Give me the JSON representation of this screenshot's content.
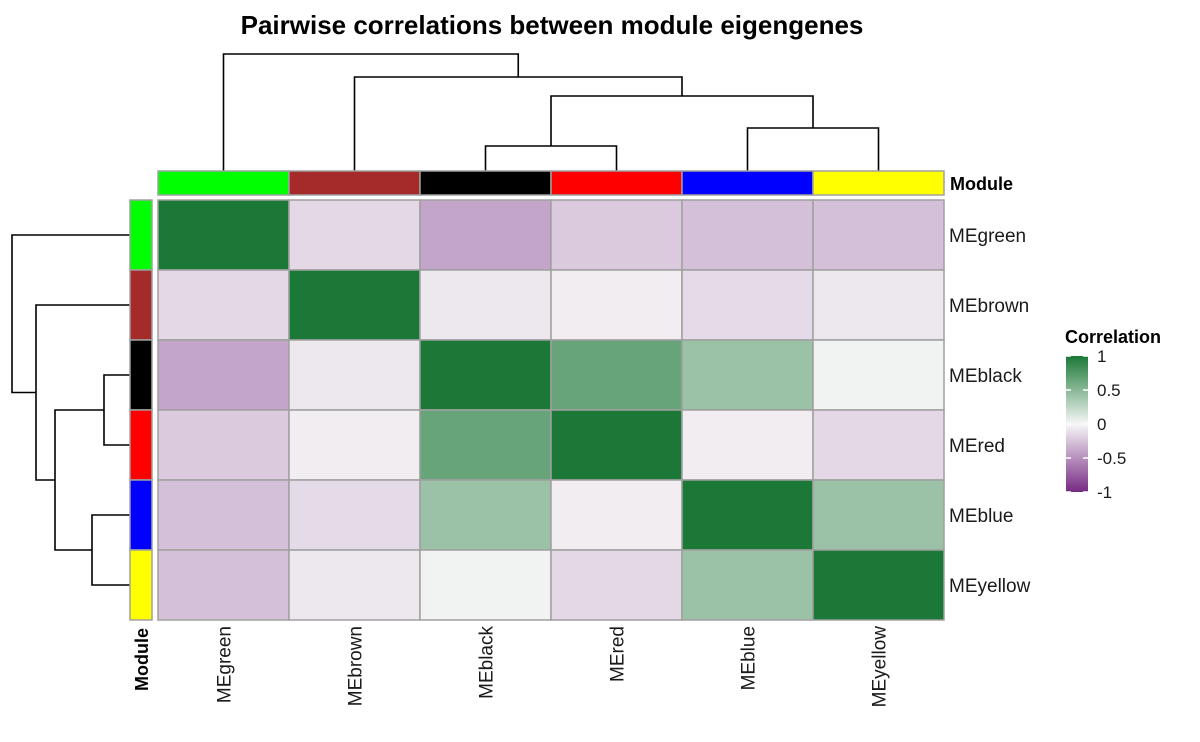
{
  "chart_data": {
    "type": "heatmap",
    "title": "Pairwise correlations between module eigengenes",
    "columns": [
      "MEgreen",
      "MEbrown",
      "MEblack",
      "MEred",
      "MEblue",
      "MEyellow"
    ],
    "rows": [
      "MEgreen",
      "MEbrown",
      "MEblack",
      "MEred",
      "MEblue",
      "MEyellow"
    ],
    "module_colors": [
      "#00ff00",
      "#a52a2a",
      "#000000",
      "#ff0000",
      "#0000ff",
      "#ffff00"
    ],
    "values": [
      [
        1.0,
        -0.15,
        -0.4,
        -0.22,
        -0.27,
        -0.27
      ],
      [
        -0.15,
        1.0,
        -0.08,
        -0.05,
        -0.14,
        -0.08
      ],
      [
        -0.4,
        -0.08,
        1.0,
        0.65,
        0.42,
        0.03
      ],
      [
        -0.22,
        -0.05,
        0.65,
        1.0,
        -0.05,
        -0.15
      ],
      [
        -0.27,
        -0.14,
        0.42,
        -0.05,
        1.0,
        0.42
      ],
      [
        -0.27,
        -0.08,
        0.03,
        -0.15,
        0.42,
        1.0
      ]
    ],
    "annotation_name": "Module",
    "legend": {
      "title": "Correlation",
      "range": [
        -1,
        1
      ],
      "ticks": [
        1,
        0.5,
        0,
        -0.5,
        -1
      ],
      "tick_labels": [
        "1",
        "0.5",
        "0",
        "-0.5",
        "-1"
      ],
      "colors": {
        "low": "#762a83",
        "mid": "#f7f7f7",
        "high": "#1b7837"
      }
    },
    "dendrogram": "((MEgreen,(MEbrown,((MEblack,MEred),(MEblue,MEyellow)))))"
  }
}
